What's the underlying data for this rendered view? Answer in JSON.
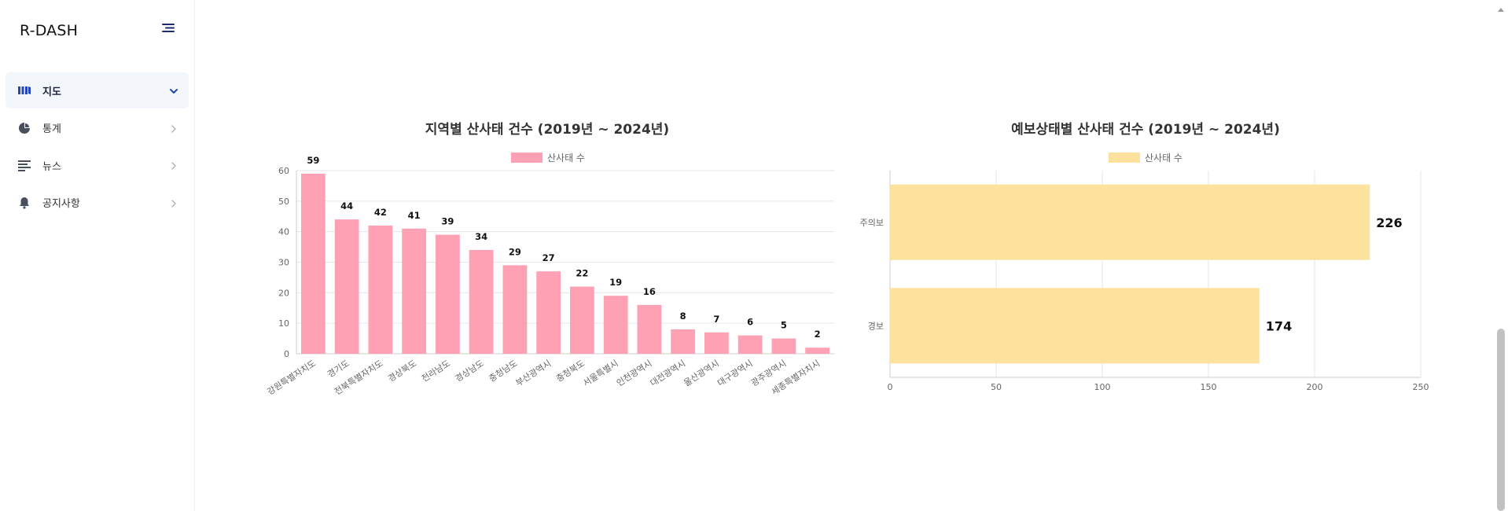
{
  "app": {
    "brand": "R-DASH"
  },
  "sidebar": {
    "items": [
      {
        "label": "지도",
        "icon": "map-icon",
        "active": true
      },
      {
        "label": "통계",
        "icon": "pie-chart-icon",
        "active": false
      },
      {
        "label": "뉴스",
        "icon": "news-list-icon",
        "active": false
      },
      {
        "label": "공지사항",
        "icon": "bell-icon",
        "active": false
      }
    ]
  },
  "colors": {
    "region_bar": "#ffa1b5",
    "warning_bar": "#fde29d",
    "active_nav_icon": "#2446b8",
    "nav_icon": "#4a4f5c"
  },
  "chart_data": [
    {
      "type": "bar",
      "title": "지역별 산사태 건수 (2019년 ~ 2024년)",
      "legend": "산사태 수",
      "legend_position": "top",
      "categories": [
        "강원특별자치도",
        "경기도",
        "전북특별자치도",
        "경상북도",
        "전라남도",
        "경상남도",
        "충청남도",
        "부산광역시",
        "충청북도",
        "서울특별시",
        "인천광역시",
        "대전광역시",
        "울산광역시",
        "대구광역시",
        "광주광역시",
        "세종특별자치시"
      ],
      "values": [
        59,
        44,
        42,
        41,
        39,
        34,
        29,
        27,
        22,
        19,
        16,
        8,
        7,
        6,
        5,
        2
      ],
      "ylim": [
        0,
        60
      ],
      "yticks": [
        0,
        10,
        20,
        30,
        40,
        50,
        60
      ],
      "grid": true
    },
    {
      "type": "bar",
      "orientation": "horizontal",
      "title": "예보상태별 산사태 건수 (2019년 ~ 2024년)",
      "legend": "산사태 수",
      "legend_position": "top",
      "categories": [
        "주의보",
        "경보"
      ],
      "values": [
        226,
        174
      ],
      "xlim": [
        0,
        250
      ],
      "xticks": [
        0,
        50,
        100,
        150,
        200,
        250
      ],
      "grid": true
    }
  ]
}
